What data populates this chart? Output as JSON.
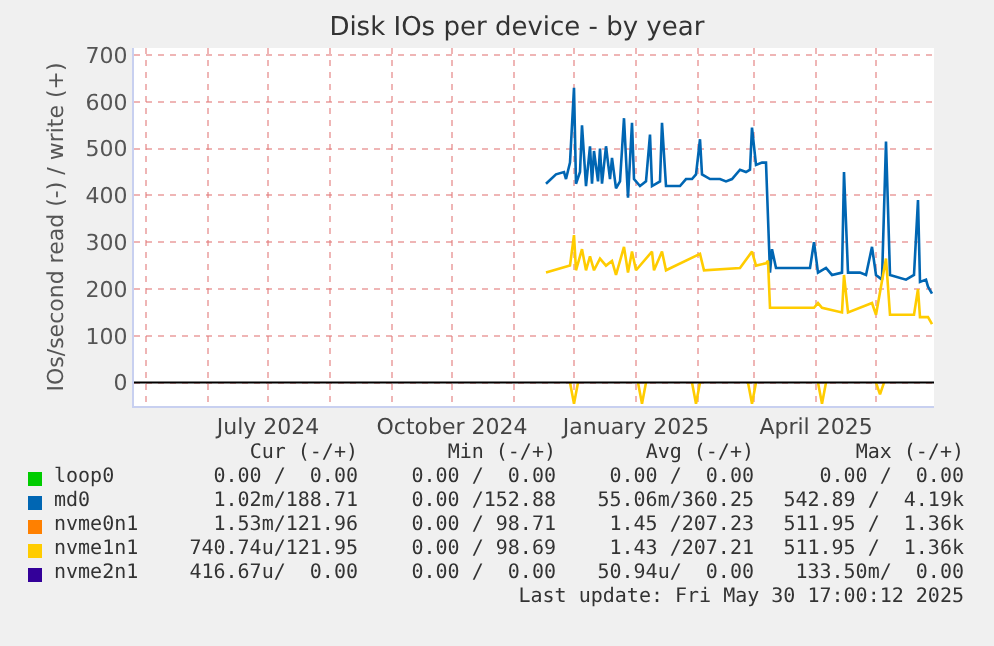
{
  "chart_data": {
    "type": "line",
    "title": "Disk IOs per device - by year",
    "ylabel": "IOs/second read (-) / write (+)",
    "xlim": [
      "2024-04-25",
      "2025-05-30"
    ],
    "xticks": [
      {
        "value": "2024-05-01",
        "label": null
      },
      {
        "value": "2024-06-01",
        "label": null
      },
      {
        "value": "2024-07-01",
        "label": "July 2024"
      },
      {
        "value": "2024-08-01",
        "label": null
      },
      {
        "value": "2024-09-01",
        "label": null
      },
      {
        "value": "2024-10-01",
        "label": "October 2024"
      },
      {
        "value": "2024-11-01",
        "label": null
      },
      {
        "value": "2024-12-01",
        "label": null
      },
      {
        "value": "2025-01-01",
        "label": "January 2025"
      },
      {
        "value": "2025-02-01",
        "label": null
      },
      {
        "value": "2025-03-01",
        "label": null
      },
      {
        "value": "2025-04-01",
        "label": "April 2025"
      },
      {
        "value": "2025-05-01",
        "label": null
      }
    ],
    "ylim": [
      -50,
      715
    ],
    "yticks": [
      0,
      100,
      200,
      300,
      400,
      500,
      600,
      700
    ],
    "grid": true,
    "legend": "bottom",
    "marker": "none",
    "line_style": "solid",
    "ref_lines": [
      {
        "axis": "y",
        "value": 0,
        "label": null,
        "color": "#000000"
      }
    ],
    "series": [
      {
        "name": "loop0",
        "color": "#00cc00"
      },
      {
        "name": "md0",
        "color": "#0066b3",
        "x": [
          "2024-11-17",
          "2024-11-22",
          "2024-11-26",
          "2024-11-27",
          "2024-11-29",
          "2024-12-01",
          "2024-12-02",
          "2024-12-04",
          "2024-12-05",
          "2024-12-07",
          "2024-12-09",
          "2024-12-10",
          "2024-12-11",
          "2024-12-13",
          "2024-12-14",
          "2024-12-15",
          "2024-12-17",
          "2024-12-19",
          "2024-12-20",
          "2024-12-22",
          "2024-12-24",
          "2024-12-26",
          "2024-12-28",
          "2024-12-30",
          "2024-12-31",
          "2025-01-03",
          "2025-01-06",
          "2025-01-08",
          "2025-01-09",
          "2025-01-13",
          "2025-01-14",
          "2025-01-16",
          "2025-01-23",
          "2025-01-26",
          "2025-01-29",
          "2025-01-31",
          "2025-02-02",
          "2025-02-03",
          "2025-02-07",
          "2025-02-12",
          "2025-02-15",
          "2025-02-18",
          "2025-02-22",
          "2025-02-25",
          "2025-02-27",
          "2025-02-28",
          "2025-03-02",
          "2025-03-05",
          "2025-03-07",
          "2025-03-09",
          "2025-03-10",
          "2025-03-12",
          "2025-03-17",
          "2025-03-24",
          "2025-03-29",
          "2025-03-31",
          "2025-04-02",
          "2025-04-06",
          "2025-04-09",
          "2025-04-14",
          "2025-04-15",
          "2025-04-17",
          "2025-04-23",
          "2025-04-26",
          "2025-04-29",
          "2025-05-01",
          "2025-05-04",
          "2025-05-06",
          "2025-05-08",
          "2025-05-16",
          "2025-05-20",
          "2025-05-22",
          "2025-05-23",
          "2025-05-26",
          "2025-05-27",
          "2025-05-29"
        ],
        "values": [
          425,
          445,
          450,
          435,
          470,
          630,
          425,
          450,
          550,
          420,
          505,
          425,
          495,
          430,
          500,
          425,
          505,
          435,
          480,
          415,
          430,
          565,
          395,
          555,
          435,
          420,
          430,
          530,
          420,
          430,
          555,
          420,
          420,
          435,
          435,
          445,
          520,
          445,
          435,
          435,
          430,
          435,
          455,
          450,
          455,
          545,
          465,
          470,
          470,
          235,
          285,
          245,
          245,
          245,
          245,
          300,
          235,
          245,
          230,
          235,
          450,
          235,
          235,
          230,
          290,
          230,
          220,
          515,
          230,
          220,
          230,
          390,
          215,
          220,
          205,
          190
        ]
      },
      {
        "name": "nvme0n1",
        "color": "#ff8000"
      },
      {
        "name": "nvme1n1",
        "color": "#ffcc00",
        "x": [
          "2024-11-17",
          "2024-11-29",
          "2024-12-01",
          "2024-12-02",
          "2024-12-05",
          "2024-12-07",
          "2024-12-09",
          "2024-12-11",
          "2024-12-14",
          "2024-12-17",
          "2024-12-20",
          "2024-12-22",
          "2024-12-26",
          "2024-12-28",
          "2024-12-30",
          "2025-01-01",
          "2025-01-09",
          "2025-01-10",
          "2025-01-14",
          "2025-01-16",
          "2025-02-02",
          "2025-02-04",
          "2025-02-22",
          "2025-02-28",
          "2025-03-02",
          "2025-03-07",
          "2025-03-08",
          "2025-03-09",
          "2025-03-12",
          "2025-03-31",
          "2025-04-02",
          "2025-04-04",
          "2025-04-14",
          "2025-04-15",
          "2025-04-17",
          "2025-04-29",
          "2025-05-01",
          "2025-05-06",
          "2025-05-08",
          "2025-05-20",
          "2025-05-22",
          "2025-05-23",
          "2025-05-27",
          "2025-05-29"
        ],
        "values": [
          235,
          250,
          315,
          240,
          285,
          240,
          270,
          240,
          265,
          250,
          260,
          230,
          290,
          235,
          280,
          240,
          280,
          240,
          280,
          240,
          275,
          240,
          245,
          280,
          250,
          255,
          260,
          160,
          160,
          160,
          170,
          160,
          150,
          230,
          150,
          170,
          145,
          265,
          145,
          145,
          200,
          140,
          140,
          125
        ]
      },
      {
        "color": "#ffcc00",
        "x": [
          "2024-11-29",
          "2024-12-01",
          "2024-12-03",
          null,
          "2025-01-02",
          "2025-01-04",
          "2025-01-06",
          null,
          "2025-01-29",
          "2025-01-31",
          "2025-02-02",
          null,
          "2025-02-26",
          "2025-02-28",
          "2025-03-02",
          null,
          "2025-04-02",
          "2025-04-04",
          "2025-04-06",
          null,
          "2025-05-01",
          "2025-05-03",
          "2025-05-05"
        ],
        "values": [
          0,
          -45,
          0,
          null,
          0,
          -45,
          0,
          null,
          0,
          -45,
          0,
          null,
          0,
          -45,
          0,
          null,
          0,
          -45,
          0,
          null,
          0,
          -25,
          0
        ]
      },
      {
        "name": "nvme2n1",
        "color": "#330099"
      }
    ],
    "annotations": [
      "Cur (-/+)",
      "Min (-/+)",
      "Avg (-/+)",
      "Max (-/+)",
      "0.00 /  0.00",
      "0.00 /  0.00",
      "0.00 /  0.00",
      "0.00 /  0.00",
      "1.02m/188.71",
      "0.00 /152.88",
      "55.06m/360.25",
      "542.89 /  4.19k",
      "1.53m/121.96",
      "0.00 / 98.71",
      "1.45 /207.23",
      "511.95 /  1.36k",
      "740.74u/121.95",
      "0.00 / 98.69",
      "1.43 /207.21",
      "511.95 /  1.36k",
      "416.67u/  0.00",
      "0.00 /  0.00",
      "50.94u/  0.00",
      "133.50m/  0.00",
      "Last update: Fri May 30 17:00:12 2025"
    ]
  }
}
